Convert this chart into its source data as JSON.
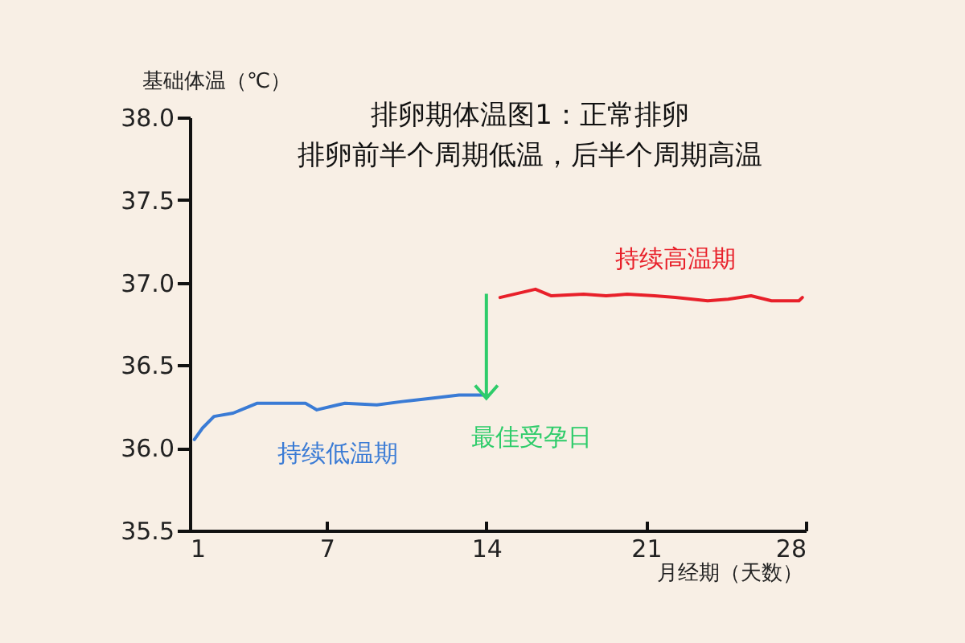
{
  "chart_data": {
    "type": "line",
    "title": "排卵期体温图1：正常排卵",
    "subtitle": "排卵前半个周期低温，后半个周期高温",
    "xlabel": "月经期（天数）",
    "ylabel": "基础体温（℃）",
    "xlim": [
      1,
      28
    ],
    "xticks": [
      1,
      7,
      14,
      21,
      28
    ],
    "ylim": [
      35.5,
      38.0
    ],
    "yticks": [
      {
        "value": 35.5,
        "label": "35.5"
      },
      {
        "value": 36.0,
        "label": "36.0"
      },
      {
        "value": 36.5,
        "label": "36.5"
      },
      {
        "value": 37.0,
        "label": "37.0"
      },
      {
        "value": 37.5,
        "label": "37.5"
      },
      {
        "value": 38.0,
        "label": "38.0"
      }
    ],
    "grid": false,
    "legend": false,
    "marker": "none",
    "line_style": "solid",
    "series": [
      {
        "name": "持续低温期",
        "color": "#3a7bd5",
        "x": [
          1.2,
          1.56,
          2.06,
          2.9,
          3.96,
          6.07,
          6.57,
          7.48,
          7.8,
          9.2,
          10.3,
          11.6,
          12.8,
          14.0
        ],
        "values": [
          36.05,
          36.12,
          36.19,
          36.21,
          36.27,
          36.27,
          36.23,
          36.26,
          36.27,
          36.26,
          36.28,
          36.3,
          36.32,
          36.32
        ]
      },
      {
        "name": "持续高温期",
        "color": "#e8202a",
        "x": [
          14.6,
          16.15,
          16.85,
          18.26,
          19.25,
          20.17,
          21.37,
          22.28,
          23.7,
          24.6,
          25.6,
          26.5,
          27.7,
          27.85
        ],
        "values": [
          36.91,
          36.96,
          36.92,
          36.93,
          36.92,
          36.93,
          36.92,
          36.91,
          36.89,
          36.9,
          36.92,
          36.89,
          36.89,
          36.91
        ]
      }
    ],
    "annotations": [
      {
        "text": "最佳受孕日",
        "x": 14,
        "y": 36.3
      }
    ]
  }
}
